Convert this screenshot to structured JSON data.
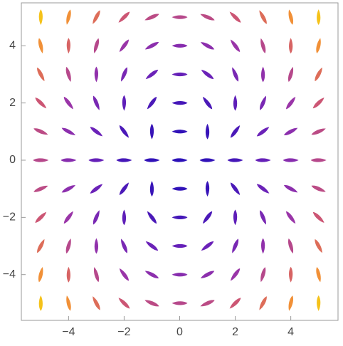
{
  "chart_data": {
    "type": "vector",
    "x": [
      -5,
      -4,
      -3,
      -2,
      -1,
      0,
      1,
      2,
      3,
      4,
      5
    ],
    "y": [
      5,
      4,
      3,
      2,
      1,
      0,
      -1,
      -2,
      -3,
      -4,
      -5
    ],
    "angles": [
      [
        -90,
        -103,
        -118,
        -136,
        -157,
        180,
        157,
        136,
        118,
        103,
        90
      ],
      [
        -77,
        -90,
        -106,
        -127,
        -152,
        180,
        152,
        127,
        106,
        90,
        77
      ],
      [
        -62,
        -74,
        -90,
        -113,
        -143,
        180,
        143,
        113,
        90,
        74,
        62
      ],
      [
        -44,
        -53,
        -67,
        -90,
        -127,
        180,
        127,
        90,
        67,
        53,
        44
      ],
      [
        -23,
        -28,
        -37,
        -53,
        -90,
        180,
        90,
        53,
        37,
        28,
        23
      ],
      [
        0,
        0,
        0,
        0,
        0,
        0,
        0,
        0,
        0,
        0,
        0
      ],
      [
        23,
        28,
        37,
        53,
        90,
        180,
        -90,
        -53,
        -37,
        -28,
        -23
      ],
      [
        44,
        53,
        67,
        90,
        127,
        180,
        -127,
        -90,
        -67,
        -53,
        -44
      ],
      [
        62,
        74,
        90,
        113,
        143,
        180,
        -143,
        -113,
        -90,
        -74,
        -62
      ],
      [
        77,
        90,
        106,
        127,
        152,
        180,
        -152,
        -127,
        -106,
        -90,
        -77
      ],
      [
        90,
        103,
        118,
        136,
        157,
        180,
        -157,
        -136,
        -118,
        -103,
        -90
      ]
    ],
    "magnitudes": [
      [
        50,
        41,
        34,
        29,
        26,
        25,
        26,
        29,
        34,
        41,
        50
      ],
      [
        41,
        32,
        25,
        20,
        17,
        16,
        17,
        20,
        25,
        32,
        41
      ],
      [
        34,
        25,
        18,
        13,
        10,
        9,
        10,
        13,
        18,
        25,
        34
      ],
      [
        29,
        20,
        13,
        8,
        5,
        4,
        5,
        8,
        13,
        20,
        29
      ],
      [
        26,
        17,
        10,
        5,
        2,
        1,
        2,
        5,
        10,
        17,
        26
      ],
      [
        25,
        16,
        9,
        4,
        1,
        0,
        1,
        4,
        9,
        16,
        25
      ],
      [
        26,
        17,
        10,
        5,
        2,
        1,
        2,
        5,
        10,
        17,
        26
      ],
      [
        29,
        20,
        13,
        8,
        5,
        4,
        5,
        8,
        13,
        20,
        29
      ],
      [
        34,
        25,
        18,
        13,
        10,
        9,
        10,
        13,
        18,
        25,
        34
      ],
      [
        41,
        32,
        25,
        20,
        17,
        16,
        17,
        20,
        25,
        32,
        41
      ],
      [
        50,
        41,
        34,
        29,
        26,
        25,
        26,
        29,
        34,
        41,
        50
      ]
    ],
    "colors": [
      "#2b10b8",
      "#6b22b8",
      "#9a35a8",
      "#d15a6e",
      "#f08a3a",
      "#f5c21a"
    ],
    "xlim": [
      -5.7,
      5.7
    ],
    "ylim": [
      -5.6,
      5.5
    ],
    "xticks": [
      {
        "value": -4,
        "label": "−4"
      },
      {
        "value": -2,
        "label": "−2"
      },
      0,
      2,
      4
    ],
    "yticks": [
      {
        "value": -4,
        "label": "−4"
      },
      {
        "value": -2,
        "label": "−2"
      },
      0,
      2,
      4
    ]
  }
}
